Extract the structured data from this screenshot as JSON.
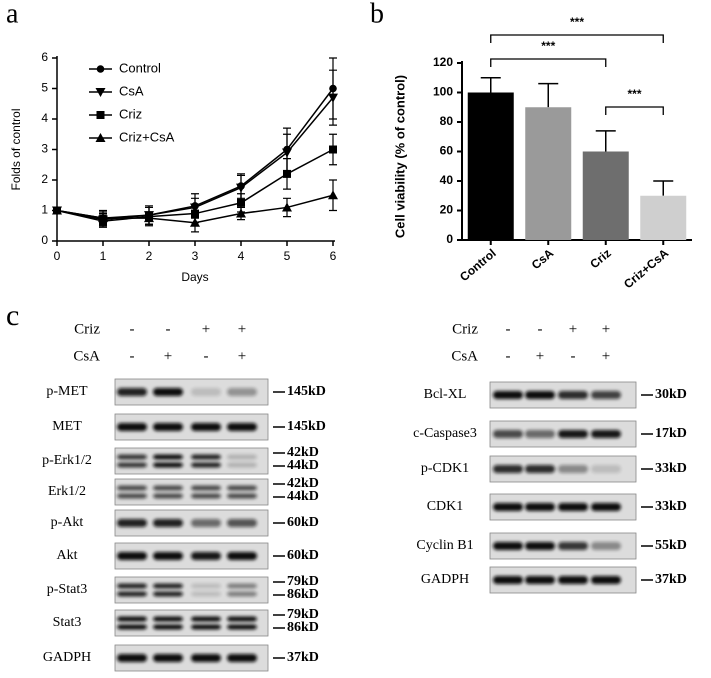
{
  "panels": [
    "a",
    "b",
    "c"
  ],
  "chart_data": [
    {
      "type": "line",
      "xlabel": "Days",
      "ylabel": "Folds of control",
      "x": [
        0,
        1,
        2,
        3,
        4,
        5,
        6
      ],
      "xlim": [
        0,
        6
      ],
      "xticks": [
        0,
        1,
        2,
        3,
        4,
        5,
        6
      ],
      "ylim": [
        0,
        6
      ],
      "yticks": [
        0,
        1,
        2,
        3,
        4,
        5,
        6
      ],
      "legend": "upper left",
      "series": [
        {
          "name": "Control",
          "color": "#000000",
          "marker": "circle",
          "values": [
            1,
            0.75,
            0.85,
            1.15,
            1.8,
            3.0,
            5.0
          ],
          "errors": [
            0.05,
            0.25,
            0.3,
            0.4,
            0.4,
            0.7,
            1.0
          ]
        },
        {
          "name": "CsA",
          "color": "#000000",
          "marker": "triangle-down",
          "values": [
            1,
            0.7,
            0.85,
            1.1,
            1.75,
            2.9,
            4.7
          ],
          "errors": [
            0.05,
            0.2,
            0.3,
            0.3,
            0.4,
            0.6,
            0.9
          ]
        },
        {
          "name": "Criz",
          "color": "#000000",
          "marker": "square",
          "values": [
            1,
            0.65,
            0.8,
            0.9,
            1.25,
            2.2,
            3.0
          ],
          "errors": [
            0.05,
            0.2,
            0.3,
            0.3,
            0.3,
            0.5,
            0.5
          ]
        },
        {
          "name": "Criz+CsA",
          "color": "#000000",
          "marker": "triangle-up",
          "values": [
            1,
            0.75,
            0.75,
            0.6,
            0.9,
            1.1,
            1.5
          ],
          "errors": [
            0.05,
            0.2,
            0.2,
            0.3,
            0.2,
            0.3,
            0.5
          ]
        }
      ]
    },
    {
      "type": "bar",
      "ylabel": "Cell viability (% of control)",
      "categories": [
        "Control",
        "CsA",
        "Criz",
        "Criz+CsA"
      ],
      "values": [
        100,
        90,
        60,
        30
      ],
      "errors": [
        10,
        16,
        14,
        10
      ],
      "colors": [
        "#000000",
        "#9a9a9a",
        "#6e6e6e",
        "#cfcfcf"
      ],
      "ylim": [
        0,
        120
      ],
      "yticks": [
        0,
        20,
        40,
        60,
        80,
        100,
        120
      ],
      "annotations": [
        "***",
        "***",
        "***"
      ]
    }
  ],
  "blots": [
    {
      "conditions": [
        {
          "name": "Criz",
          "signs": [
            "-",
            "-",
            "+",
            "+"
          ]
        },
        {
          "name": "CsA",
          "signs": [
            "-",
            "+",
            "-",
            "+"
          ]
        }
      ],
      "rows": [
        {
          "label": "p-MET",
          "sizes": [
            "145kD"
          ]
        },
        {
          "label": "MET",
          "sizes": [
            "145kD"
          ]
        },
        {
          "label": "p-Erk1/2",
          "sizes": [
            "42kD",
            "44kD"
          ]
        },
        {
          "label": "Erk1/2",
          "sizes": [
            "42kD",
            "44kD"
          ]
        },
        {
          "label": "p-Akt",
          "sizes": [
            "60kD"
          ]
        },
        {
          "label": "Akt",
          "sizes": [
            "60kD"
          ]
        },
        {
          "label": "p-Stat3",
          "sizes": [
            "79kD",
            "86kD"
          ]
        },
        {
          "label": "Stat3",
          "sizes": [
            "79kD",
            "86kD"
          ]
        },
        {
          "label": "GADPH",
          "sizes": [
            "37kD"
          ]
        }
      ]
    },
    {
      "conditions": [
        {
          "name": "Criz",
          "signs": [
            "-",
            "-",
            "+",
            "+"
          ]
        },
        {
          "name": "CsA",
          "signs": [
            "-",
            "+",
            "-",
            "+"
          ]
        }
      ],
      "rows": [
        {
          "label": "Bcl-XL",
          "sizes": [
            "30kD"
          ]
        },
        {
          "label": "c-Caspase3",
          "sizes": [
            "17kD"
          ]
        },
        {
          "label": "p-CDK1",
          "sizes": [
            "33kD"
          ]
        },
        {
          "label": "CDK1",
          "sizes": [
            "33kD"
          ]
        },
        {
          "label": "Cyclin B1",
          "sizes": [
            "55kD"
          ]
        },
        {
          "label": "GADPH",
          "sizes": [
            "37kD"
          ]
        }
      ]
    }
  ]
}
